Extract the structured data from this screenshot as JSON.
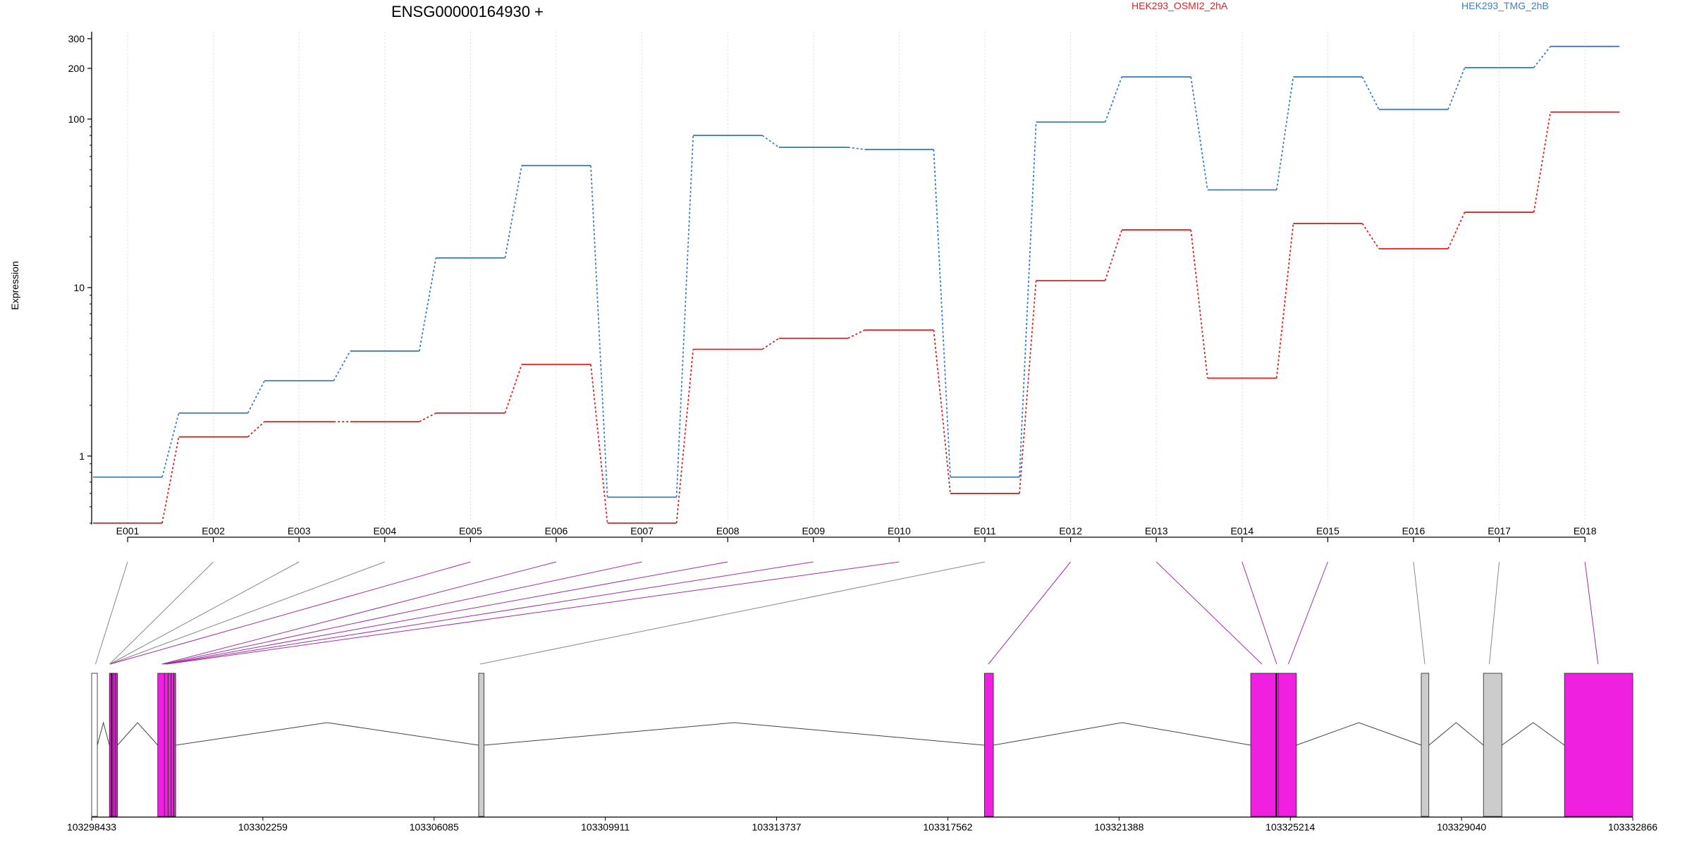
{
  "chart_data": {
    "type": "line",
    "title": "ENSG00000164930 +",
    "ylabel": "Expression",
    "xlabel": "",
    "y_scale": "log",
    "ylim": [
      0.4,
      330
    ],
    "y_ticks": [
      1,
      10,
      100,
      200,
      300
    ],
    "y_tick_labels": [
      "1",
      "10",
      "100",
      "200",
      "300"
    ],
    "grid": "vertical dotted lines at exon positions",
    "legend_position": "top",
    "categories": [
      "E001",
      "E002",
      "E003",
      "E004",
      "E005",
      "E006",
      "E007",
      "E008",
      "E009",
      "E010",
      "E011",
      "E012",
      "E013",
      "E014",
      "E015",
      "E016",
      "E017",
      "E018"
    ],
    "series": [
      {
        "name": "HEK293_OSMI2_2hA",
        "color": "#d62728",
        "values": [
          0.4,
          1.3,
          1.6,
          1.6,
          1.8,
          3.5,
          0.4,
          4.3,
          5.0,
          5.6,
          0.6,
          11,
          22,
          2.9,
          24,
          17,
          28,
          110
        ]
      },
      {
        "name": "HEK293_TMG_2hB",
        "color": "#3f7fbf",
        "values": [
          0.75,
          1.8,
          2.8,
          4.2,
          15,
          53,
          0.57,
          80,
          68,
          66,
          0.75,
          96,
          178,
          38,
          178,
          114,
          202,
          270
        ]
      }
    ],
    "exon_linker_colors": [
      "#888888",
      "#888888",
      "#888888",
      "#888888",
      "#a030a0",
      "#a030a0",
      "#a030a0",
      "#a030a0",
      "#a030a0",
      "#a030a0",
      "#888888",
      "#a030a0",
      "#a030a0",
      "#a030a0",
      "#a030a0",
      "#888888",
      "#888888",
      "#a030a0"
    ],
    "gene_model": {
      "coordinate_labels": [
        "103298433",
        "103302259",
        "103306085",
        "103309911",
        "103313737",
        "103317562",
        "103321388",
        "103325214",
        "103329040",
        "103332866"
      ],
      "coordinate_range": [
        103298433,
        103332866
      ],
      "exons": [
        {
          "id": "E001",
          "start": 103298433,
          "end": 103298560,
          "color": "#ffffff",
          "target": 103298520
        },
        {
          "id": "E002",
          "start": 103298830,
          "end": 103298880,
          "color": "#f020e0",
          "target": 103298835
        },
        {
          "id": "E003",
          "start": 103298880,
          "end": 103298930,
          "color": "#f020e0",
          "target": 103298840
        },
        {
          "id": "E004",
          "start": 103298930,
          "end": 103298970,
          "color": "#f020e0",
          "target": 103298845
        },
        {
          "id": "E005",
          "start": 103298970,
          "end": 103299010,
          "color": "#f020e0",
          "target": 103298850
        },
        {
          "id": "E006",
          "start": 103299910,
          "end": 103300060,
          "color": "#f020e0",
          "target": 103300000
        },
        {
          "id": "E007",
          "start": 103300060,
          "end": 103300140,
          "color": "#f020e0",
          "target": 103300030
        },
        {
          "id": "E008",
          "start": 103300140,
          "end": 103300210,
          "color": "#f020e0",
          "target": 103300060
        },
        {
          "id": "E009",
          "start": 103300210,
          "end": 103300270,
          "color": "#f020e0",
          "target": 103300090
        },
        {
          "id": "E010",
          "start": 103300270,
          "end": 103300310,
          "color": "#f020e0",
          "target": 103300120
        },
        {
          "id": "E011",
          "start": 103307080,
          "end": 103307200,
          "color": "#cccccc",
          "target": 103307110
        },
        {
          "id": "E012",
          "start": 103318380,
          "end": 103318580,
          "color": "#f020e0",
          "target": 103318470
        },
        {
          "id": "E013",
          "start": 103324330,
          "end": 103324900,
          "color": "#f020e0",
          "target": 103324580
        },
        {
          "id": "E014",
          "start": 103324900,
          "end": 103324950,
          "color": "#f020e0",
          "target": 103324910
        },
        {
          "id": "E015",
          "start": 103324950,
          "end": 103325350,
          "color": "#f020e0",
          "target": 103325170
        },
        {
          "id": "E016",
          "start": 103328140,
          "end": 103328310,
          "color": "#cccccc",
          "target": 103328220
        },
        {
          "id": "E017",
          "start": 103329530,
          "end": 103329940,
          "color": "#cccccc",
          "target": 103329660
        },
        {
          "id": "E018",
          "start": 103331340,
          "end": 103332866,
          "color": "#f020e0",
          "target": 103332090
        }
      ],
      "introns": [
        {
          "from": 103298560,
          "to": 103298830
        },
        {
          "from": 103299010,
          "to": 103299910
        },
        {
          "from": 103300310,
          "to": 103307080
        },
        {
          "from": 103307200,
          "to": 103318380
        },
        {
          "from": 103318580,
          "to": 103324330
        },
        {
          "from": 103325350,
          "to": 103328140
        },
        {
          "from": 103328310,
          "to": 103329530
        },
        {
          "from": 103329940,
          "to": 103331340
        }
      ],
      "marker_lines": [
        103298880,
        103324900
      ]
    }
  }
}
